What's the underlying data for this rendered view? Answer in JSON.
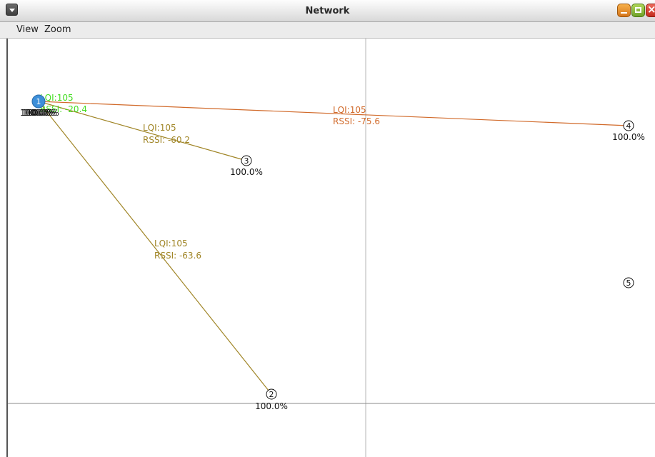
{
  "window": {
    "title": "Network"
  },
  "menu": {
    "view": "View",
    "zoom": "Zoom"
  },
  "colors": {
    "root_node_fill": "#3d8fd9",
    "node_stroke": "#111111",
    "axis": "#b5b5b5"
  },
  "graph": {
    "nodes": [
      {
        "id": "1",
        "pct": "100.0%",
        "root": true
      },
      {
        "id": "2",
        "pct": "100.0%"
      },
      {
        "id": "3",
        "pct": "100.0%"
      },
      {
        "id": "4",
        "pct": "100.0%"
      },
      {
        "id": "5"
      }
    ],
    "overlapping_pct_labels": [
      "100.0%",
      "100.0%",
      "100.0%",
      "100.0%"
    ],
    "links": [
      {
        "to": "2",
        "lqi": "LQI:105",
        "rssi": "RSSI: -63.6",
        "color": "#a08526"
      },
      {
        "to": "3",
        "lqi": "LQI:105",
        "rssi": "RSSI: -60.2",
        "color": "#a08526"
      },
      {
        "to": "4",
        "lqi": "LQI:105",
        "rssi": "RSSI: -75.6",
        "color": "#d16a2a"
      },
      {
        "to": "1",
        "lqi": "LQI:105",
        "rssi": "RSSI: -20.4",
        "color": "#44dd22"
      }
    ]
  }
}
